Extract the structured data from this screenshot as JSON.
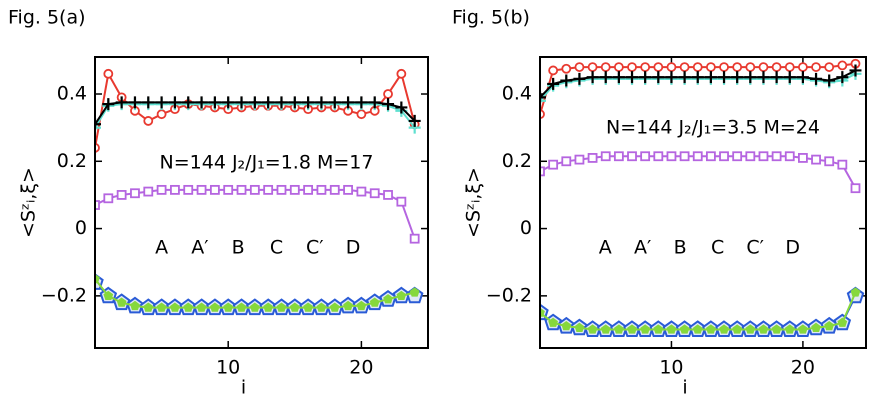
{
  "chart_data": [
    {
      "type": "line",
      "title": "Fig. 5(a)",
      "xlabel": "i",
      "ylabel": "<Sᶻᵢ,ξ>",
      "annotation": "N=144  J₂/J₁=1.8  M=17",
      "x": [
        0,
        1,
        2,
        3,
        4,
        5,
        6,
        7,
        8,
        9,
        10,
        11,
        12,
        13,
        14,
        15,
        16,
        17,
        18,
        19,
        20,
        21,
        22,
        23,
        24
      ],
      "xlim": [
        0,
        25
      ],
      "xticks": [
        10,
        20
      ],
      "ylim": [
        -0.355,
        0.51
      ],
      "yticks": [
        {
          "value": 0.4,
          "label": "0.4"
        },
        {
          "value": 0.2,
          "label": "0.2"
        },
        0,
        {
          "value": -0.2,
          "label": "−0.2"
        }
      ],
      "series": [
        {
          "name": "A′",
          "color": "#2a5bd6",
          "marker": "pentagon-open",
          "values": [
            -0.16,
            -0.2,
            -0.22,
            -0.23,
            -0.235,
            -0.235,
            -0.235,
            -0.235,
            -0.235,
            -0.235,
            -0.235,
            -0.235,
            -0.235,
            -0.235,
            -0.235,
            -0.235,
            -0.235,
            -0.235,
            -0.235,
            -0.23,
            -0.23,
            -0.22,
            -0.21,
            -0.2,
            -0.2
          ]
        },
        {
          "name": "A",
          "color": "#86d83c",
          "marker": "pentagon",
          "values": [
            -0.15,
            -0.2,
            -0.22,
            -0.23,
            -0.235,
            -0.235,
            -0.235,
            -0.235,
            -0.235,
            -0.235,
            -0.235,
            -0.235,
            -0.235,
            -0.235,
            -0.235,
            -0.235,
            -0.235,
            -0.235,
            -0.235,
            -0.23,
            -0.23,
            -0.22,
            -0.21,
            -0.2,
            -0.19
          ]
        },
        {
          "name": "B",
          "color": "#e8392f",
          "marker": "circle",
          "values": [
            0.24,
            0.46,
            0.39,
            0.35,
            0.32,
            0.34,
            0.355,
            0.37,
            0.365,
            0.36,
            0.355,
            0.36,
            0.365,
            0.365,
            0.365,
            0.36,
            0.355,
            0.36,
            0.36,
            0.35,
            0.34,
            0.35,
            0.4,
            0.46,
            0.31
          ]
        },
        {
          "name": "C′",
          "color": "#5fe0d0",
          "marker": "plus",
          "values": [
            0.3,
            0.365,
            0.37,
            0.37,
            0.37,
            0.37,
            0.37,
            0.37,
            0.37,
            0.37,
            0.37,
            0.37,
            0.37,
            0.37,
            0.37,
            0.37,
            0.37,
            0.37,
            0.37,
            0.37,
            0.37,
            0.37,
            0.365,
            0.35,
            0.3
          ]
        },
        {
          "name": "C",
          "color": "#000000",
          "marker": "plus",
          "values": [
            0.31,
            0.37,
            0.375,
            0.375,
            0.375,
            0.375,
            0.375,
            0.375,
            0.375,
            0.375,
            0.375,
            0.375,
            0.375,
            0.375,
            0.375,
            0.375,
            0.375,
            0.375,
            0.375,
            0.375,
            0.375,
            0.375,
            0.37,
            0.36,
            0.32
          ]
        },
        {
          "name": "D",
          "color": "#b565e0",
          "marker": "square",
          "values": [
            0.07,
            0.09,
            0.1,
            0.105,
            0.11,
            0.115,
            0.115,
            0.115,
            0.115,
            0.115,
            0.115,
            0.115,
            0.115,
            0.115,
            0.115,
            0.115,
            0.115,
            0.115,
            0.115,
            0.115,
            0.11,
            0.105,
            0.1,
            0.08,
            -0.03
          ]
        }
      ]
    },
    {
      "type": "line",
      "title": "Fig. 5(b)",
      "xlabel": "i",
      "ylabel": "<Sᶻᵢ,ξ>",
      "annotation": "N=144  J₂/J₁=3.5  M=24",
      "x": [
        0,
        1,
        2,
        3,
        4,
        5,
        6,
        7,
        8,
        9,
        10,
        11,
        12,
        13,
        14,
        15,
        16,
        17,
        18,
        19,
        20,
        21,
        22,
        23,
        24
      ],
      "xlim": [
        0,
        24.8
      ],
      "xticks": [
        10,
        20
      ],
      "ylim": [
        -0.355,
        0.51
      ],
      "yticks": [
        {
          "value": 0.4,
          "label": "0.4"
        },
        {
          "value": 0.2,
          "label": "0.2"
        },
        0,
        {
          "value": -0.2,
          "label": "−0.2"
        }
      ],
      "series": [
        {
          "name": "A′",
          "color": "#2a5bd6",
          "marker": "pentagon-open",
          "values": [
            -0.25,
            -0.28,
            -0.29,
            -0.295,
            -0.3,
            -0.3,
            -0.3,
            -0.3,
            -0.3,
            -0.3,
            -0.3,
            -0.3,
            -0.3,
            -0.3,
            -0.3,
            -0.3,
            -0.3,
            -0.3,
            -0.3,
            -0.3,
            -0.3,
            -0.295,
            -0.29,
            -0.28,
            -0.2
          ]
        },
        {
          "name": "A",
          "color": "#86d83c",
          "marker": "pentagon",
          "values": [
            -0.25,
            -0.28,
            -0.29,
            -0.295,
            -0.3,
            -0.3,
            -0.3,
            -0.3,
            -0.3,
            -0.3,
            -0.3,
            -0.3,
            -0.3,
            -0.3,
            -0.3,
            -0.3,
            -0.3,
            -0.3,
            -0.3,
            -0.3,
            -0.3,
            -0.295,
            -0.29,
            -0.28,
            -0.19
          ]
        },
        {
          "name": "B",
          "color": "#e8392f",
          "marker": "circle",
          "values": [
            0.34,
            0.47,
            0.475,
            0.48,
            0.48,
            0.48,
            0.48,
            0.48,
            0.48,
            0.48,
            0.48,
            0.48,
            0.48,
            0.48,
            0.48,
            0.48,
            0.48,
            0.48,
            0.48,
            0.48,
            0.48,
            0.48,
            0.48,
            0.485,
            0.49
          ]
        },
        {
          "name": "C′",
          "color": "#5fe0d0",
          "marker": "plus",
          "values": [
            0.38,
            0.425,
            0.435,
            0.44,
            0.445,
            0.445,
            0.445,
            0.445,
            0.445,
            0.445,
            0.445,
            0.445,
            0.445,
            0.445,
            0.445,
            0.445,
            0.445,
            0.445,
            0.445,
            0.445,
            0.445,
            0.44,
            0.435,
            0.44,
            0.46
          ]
        },
        {
          "name": "C",
          "color": "#000000",
          "marker": "plus",
          "values": [
            0.39,
            0.43,
            0.44,
            0.445,
            0.45,
            0.45,
            0.45,
            0.45,
            0.45,
            0.45,
            0.45,
            0.45,
            0.45,
            0.45,
            0.45,
            0.45,
            0.45,
            0.45,
            0.45,
            0.45,
            0.45,
            0.445,
            0.44,
            0.45,
            0.47
          ]
        },
        {
          "name": "D",
          "color": "#b565e0",
          "marker": "square",
          "values": [
            0.17,
            0.19,
            0.2,
            0.205,
            0.21,
            0.215,
            0.215,
            0.215,
            0.215,
            0.215,
            0.215,
            0.215,
            0.215,
            0.215,
            0.215,
            0.215,
            0.215,
            0.215,
            0.215,
            0.215,
            0.21,
            0.205,
            0.2,
            0.19,
            0.12
          ]
        }
      ]
    }
  ]
}
